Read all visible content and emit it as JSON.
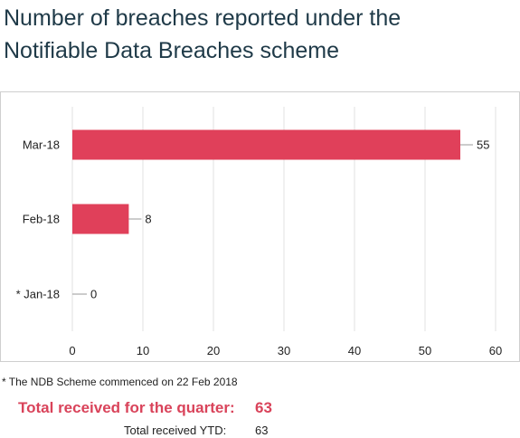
{
  "title_line1": "Number of breaches reported under the",
  "title_line2": "Notifiable Data Breaches scheme",
  "footnote": "* The NDB Scheme commenced on 22 Feb 2018",
  "totals": {
    "quarter_label": "Total received for the quarter:",
    "quarter_value": "63",
    "ytd_label": "Total received YTD:",
    "ytd_value": "63"
  },
  "colors": {
    "bar": "#e0405a",
    "grid": "#e2e2e2",
    "accent_text": "#d9435a"
  },
  "chart_data": {
    "type": "bar",
    "orientation": "horizontal",
    "categories": [
      "Mar-18",
      "Feb-18",
      "* Jan-18"
    ],
    "values": [
      55,
      8,
      0
    ],
    "xlim": [
      0,
      60
    ],
    "xticks": [
      0,
      10,
      20,
      30,
      40,
      50,
      60
    ],
    "grid": true,
    "xlabel": "",
    "ylabel": ""
  }
}
